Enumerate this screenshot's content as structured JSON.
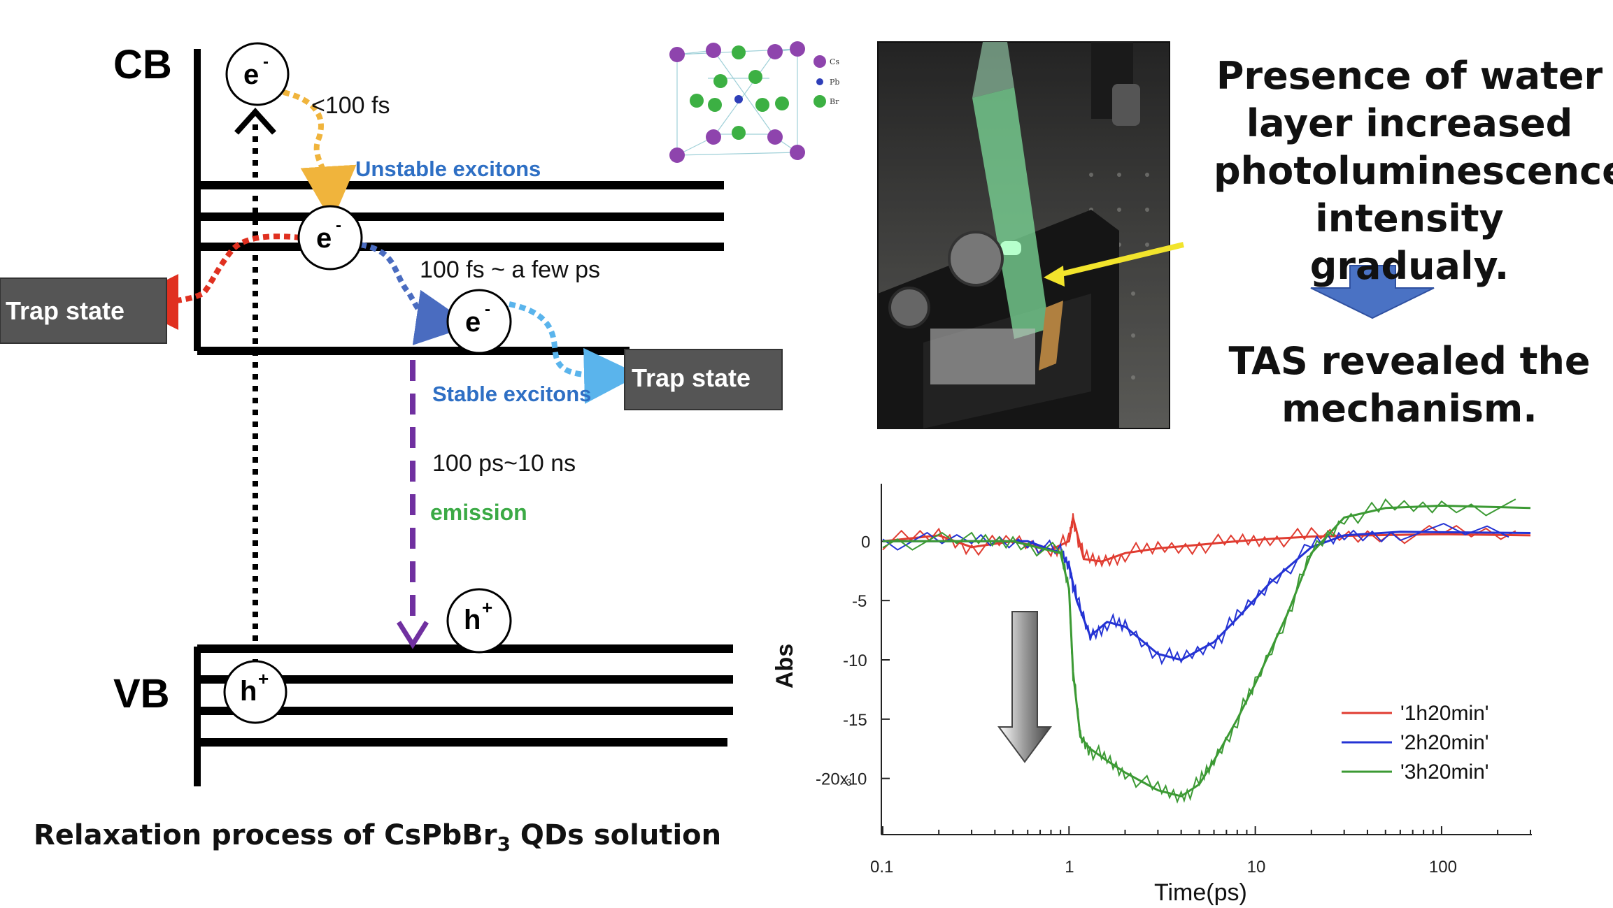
{
  "energy_diagram": {
    "cb_label": "CB",
    "vb_label": "VB",
    "electron": "e",
    "electron_sup": "-",
    "hole": "h",
    "hole_sup": "+",
    "t1": "<100 fs",
    "unstable": "Unstable excitons",
    "t2": "100 fs ~ a few ps",
    "trap_left": "Trap state",
    "trap_right": "Trap state",
    "stable": "Stable excitons",
    "t3": "100 ps~10 ns",
    "emission": "emission",
    "colors": {
      "yellow": "#F0B43C",
      "blue_dark": "#4A6CC0",
      "blue_light": "#5AB4EC",
      "red": "#E03020",
      "purple": "#7030A0",
      "green_text": "#3BAA45",
      "blue_text": "#2E6FC4"
    }
  },
  "crystal_legend": {
    "cs": "Cs",
    "pb": "Pb",
    "br": "Br"
  },
  "caption": {
    "prefix": "Relaxation process of CsPbBr",
    "sub": "3",
    "suffix": " QDs solution"
  },
  "side_text": {
    "line1": "Presence of water",
    "line2": "layer increased",
    "line3": "photoluminescence",
    "line4": "intensity gradualy.",
    "line5": "TAS revealed the",
    "line6": "mechanism."
  },
  "chart_data": {
    "type": "line",
    "xscale": "log",
    "xlim": [
      0.1,
      300
    ],
    "ylim": [
      -0.0245,
      0.0045
    ],
    "xlabel": "Time(ps)",
    "ylabel": "Abs",
    "xticks": [
      "0.1",
      "1",
      "10",
      "100"
    ],
    "yticks": [
      "0",
      "-5",
      "-10",
      "-15",
      "-20x10"
    ],
    "yticks_suffix": "-3",
    "legend_position": "bottom-right",
    "series": [
      {
        "name": "'1h20min'",
        "color": "#E03C31",
        "x": [
          0.1,
          0.2,
          0.3,
          0.5,
          0.8,
          1.0,
          1.05,
          1.2,
          1.5,
          2,
          3,
          5,
          8,
          12,
          20,
          40,
          100,
          300
        ],
        "y": [
          0.0,
          0.0005,
          -0.0005,
          0.0,
          -0.0007,
          0.0,
          0.002,
          -0.0015,
          -0.0017,
          -0.001,
          -0.0006,
          -0.0003,
          0.0,
          0.0002,
          0.0004,
          0.0005,
          0.0006,
          0.0005
        ]
      },
      {
        "name": "'2h20min'",
        "color": "#2433D4",
        "x": [
          0.1,
          0.3,
          0.6,
          0.9,
          1.0,
          1.1,
          1.3,
          1.6,
          2,
          3,
          4,
          6,
          8,
          12,
          20,
          30,
          60,
          300
        ],
        "y": [
          0.0,
          0.0,
          0.0,
          -0.001,
          -0.002,
          -0.005,
          -0.008,
          -0.0068,
          -0.0072,
          -0.0095,
          -0.01,
          -0.0085,
          -0.0065,
          -0.0035,
          -0.0005,
          0.0005,
          0.0008,
          0.0007
        ]
      },
      {
        "name": "'3h20min'",
        "color": "#3C9A34",
        "x": [
          0.1,
          0.3,
          0.5,
          0.9,
          1.0,
          1.05,
          1.15,
          1.3,
          1.6,
          2,
          3,
          4,
          5,
          6,
          8,
          10,
          15,
          20,
          30,
          50,
          100,
          300
        ],
        "y": [
          0.0,
          0.0,
          0.0,
          -0.001,
          -0.004,
          -0.011,
          -0.0165,
          -0.0175,
          -0.0185,
          -0.0195,
          -0.021,
          -0.0215,
          -0.0205,
          -0.0185,
          -0.015,
          -0.012,
          -0.006,
          -0.001,
          0.002,
          0.0028,
          0.003,
          0.0028
        ]
      }
    ]
  }
}
